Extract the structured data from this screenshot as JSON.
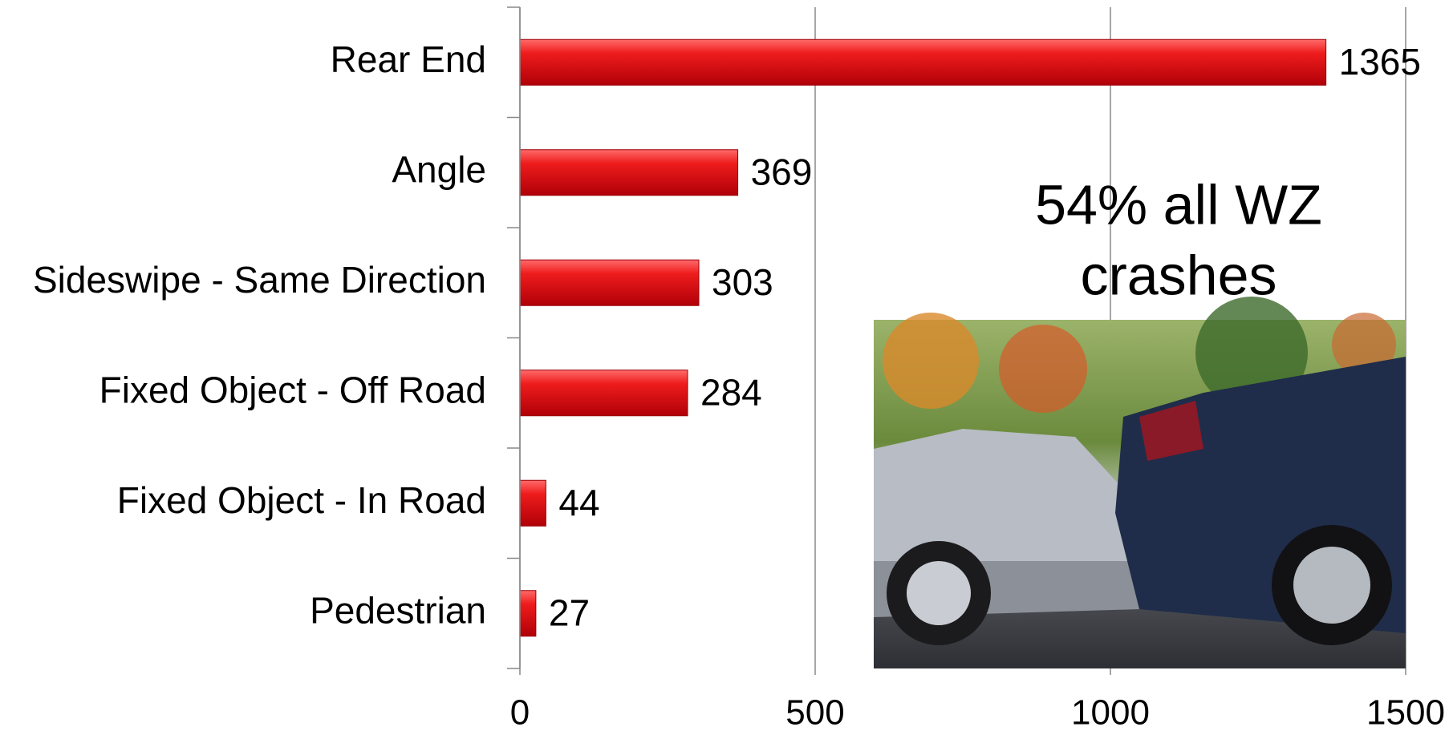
{
  "chart_data": {
    "type": "bar",
    "orientation": "horizontal",
    "categories": [
      "Rear End",
      "Angle",
      "Sideswipe - Same Direction",
      "Fixed Object - Off Road",
      "Fixed Object - In Road",
      "Pedestrian"
    ],
    "values": [
      1365,
      369,
      303,
      284,
      44,
      27
    ],
    "color": "#e8101a",
    "xlim": [
      0,
      1500
    ],
    "xticks": [
      0,
      500,
      1000,
      1500
    ],
    "grid": true,
    "annotation": [
      "54% all WZ",
      "crashes"
    ]
  }
}
